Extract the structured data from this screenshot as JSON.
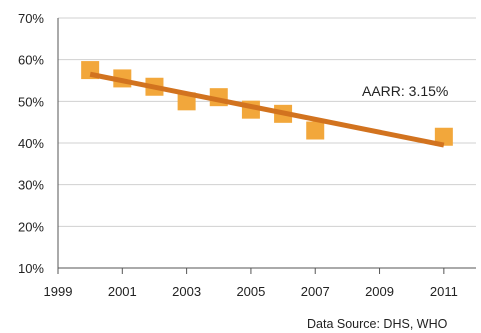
{
  "chart_data": {
    "type": "scatter",
    "title": "",
    "xlabel": "",
    "ylabel": "",
    "xlim": [
      1999,
      2012
    ],
    "ylim": [
      10,
      70
    ],
    "x_ticks": [
      "1999",
      "2001",
      "2003",
      "2005",
      "2007",
      "2009",
      "2011"
    ],
    "x_tick_values": [
      1999,
      2001,
      2003,
      2005,
      2007,
      2009,
      2011
    ],
    "y_ticks": [
      "10%",
      "20%",
      "30%",
      "40%",
      "50%",
      "60%",
      "70%"
    ],
    "y_tick_values": [
      10,
      20,
      30,
      40,
      50,
      60,
      70
    ],
    "grid": "horizontal",
    "series": [
      {
        "values_x": [
          2000,
          2001,
          2002,
          2003,
          2004,
          2005,
          2006,
          2007,
          2011
        ],
        "values_y": [
          57.5,
          55.5,
          53.5,
          50,
          51,
          48,
          47,
          43,
          41.5
        ],
        "marker": "square",
        "color": "#f2a73b"
      }
    ],
    "trendline": {
      "x": [
        2000,
        2011
      ],
      "y": [
        56.5,
        39.5
      ],
      "color": "#d2731f"
    },
    "annotation": "AARR: 3.15%",
    "source": "Data Source: DHS, WHO"
  }
}
